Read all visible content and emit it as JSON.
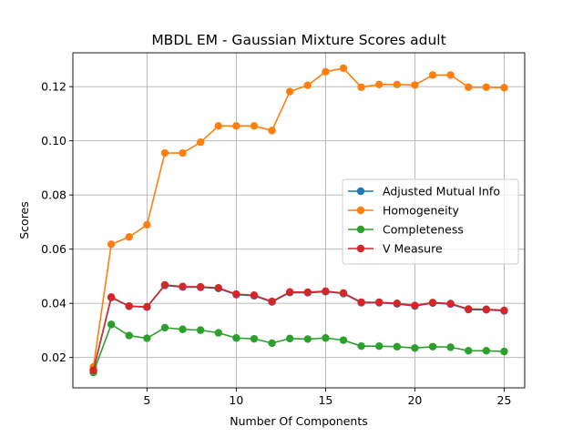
{
  "chart_data": {
    "type": "line",
    "title": "MBDL EM - Gaussian Mixture Scores adult",
    "xlabel": "Number Of Components",
    "ylabel": "Scores",
    "xlim": [
      0.85,
      26.15
    ],
    "ylim": [
      0.0088,
      0.1325
    ],
    "xticks": [
      5,
      10,
      15,
      20,
      25
    ],
    "yticks": [
      0.02,
      0.04,
      0.06,
      0.08,
      0.1,
      0.12
    ],
    "ytick_labels": [
      "0.02",
      "0.04",
      "0.06",
      "0.08",
      "0.10",
      "0.12"
    ],
    "grid": true,
    "legend_placement": "center-right",
    "x": [
      2,
      3,
      4,
      5,
      6,
      7,
      8,
      9,
      10,
      11,
      12,
      13,
      14,
      15,
      16,
      17,
      18,
      19,
      20,
      21,
      22,
      23,
      24,
      25
    ],
    "series": [
      {
        "name": "Adjusted Mutual Info",
        "color": "#1f77b4",
        "values": [
          0.0153,
          0.0421,
          0.0389,
          0.0386,
          0.0466,
          0.046,
          0.0459,
          0.0455,
          0.0432,
          0.0428,
          0.0405,
          0.044,
          0.0439,
          0.0443,
          0.0436,
          0.0402,
          0.0402,
          0.0398,
          0.039,
          0.0401,
          0.0397,
          0.0377,
          0.0376,
          0.0372
        ]
      },
      {
        "name": "Homogeneity",
        "color": "#ff7f0e",
        "values": [
          0.0165,
          0.0618,
          0.0645,
          0.069,
          0.0955,
          0.0955,
          0.0995,
          0.1055,
          0.1055,
          0.1055,
          0.1038,
          0.1182,
          0.1205,
          0.1255,
          0.1268,
          0.1198,
          0.1208,
          0.1208,
          0.1206,
          0.1243,
          0.1243,
          0.1198,
          0.1198,
          0.1196
        ]
      },
      {
        "name": "Completeness",
        "color": "#2ca02c",
        "values": [
          0.0145,
          0.0322,
          0.0281,
          0.0271,
          0.031,
          0.0304,
          0.0301,
          0.0291,
          0.0272,
          0.0269,
          0.0253,
          0.027,
          0.0268,
          0.0272,
          0.0264,
          0.0242,
          0.0242,
          0.024,
          0.0235,
          0.024,
          0.0238,
          0.0225,
          0.0225,
          0.0222
        ]
      },
      {
        "name": "V Measure",
        "color": "#d62728",
        "values": [
          0.0153,
          0.0423,
          0.039,
          0.0387,
          0.0468,
          0.0462,
          0.0461,
          0.0457,
          0.0434,
          0.043,
          0.0407,
          0.0442,
          0.0441,
          0.0445,
          0.0438,
          0.0404,
          0.0404,
          0.04,
          0.0392,
          0.0403,
          0.0399,
          0.0379,
          0.0378,
          0.0374
        ]
      }
    ]
  }
}
